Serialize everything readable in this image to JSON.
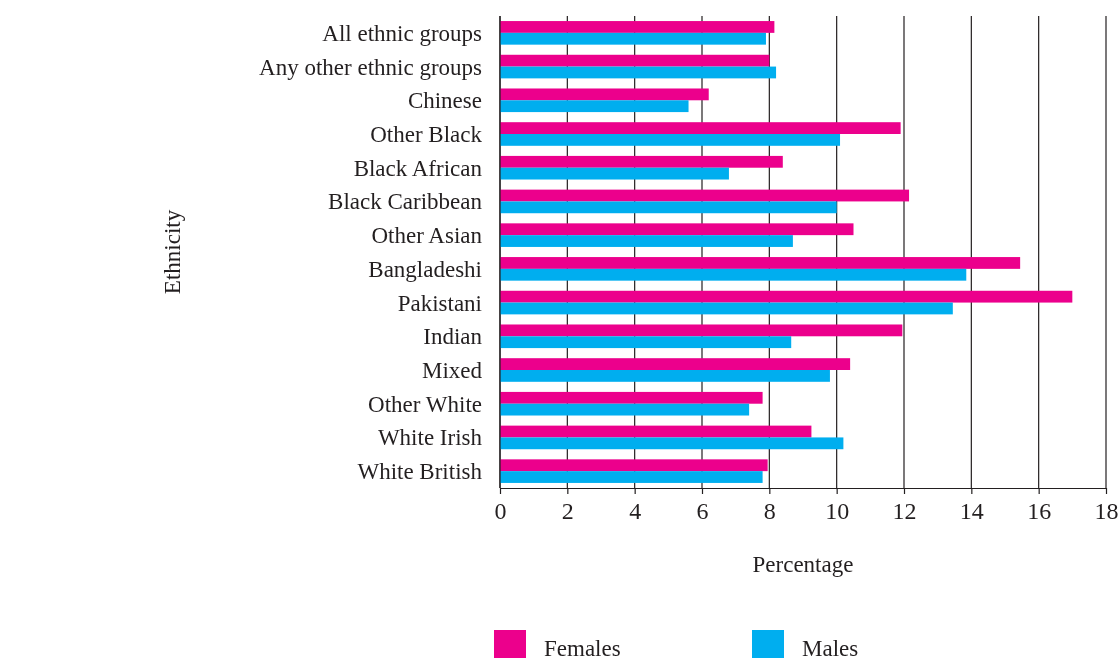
{
  "chart_data": {
    "type": "bar",
    "orientation": "horizontal",
    "xlabel": "Percentage",
    "ylabel": "Ethnicity",
    "categories": [
      "All ethnic groups",
      "Any other ethnic groups",
      "Chinese",
      "Other Black",
      "Black African",
      "Black Caribbean",
      "Other Asian",
      "Bangladeshi",
      "Pakistani",
      "Indian",
      "Mixed",
      "Other White",
      "White Irish",
      "White British"
    ],
    "series": [
      {
        "name": "Females",
        "color": "#ec008c",
        "values": [
          8.15,
          8.0,
          6.2,
          11.9,
          8.4,
          12.15,
          10.5,
          15.45,
          17.0,
          11.95,
          10.4,
          7.8,
          9.25,
          7.95
        ]
      },
      {
        "name": "Males",
        "color": "#00aeef",
        "values": [
          7.9,
          8.2,
          5.6,
          10.1,
          6.8,
          10.0,
          8.7,
          13.85,
          13.45,
          8.65,
          9.8,
          7.4,
          10.2,
          7.8
        ]
      }
    ],
    "xlim": [
      0,
      18
    ],
    "xticks": [
      0,
      2,
      4,
      6,
      8,
      10,
      12,
      14,
      16,
      18
    ],
    "grid": "x",
    "legend": "bottom"
  }
}
